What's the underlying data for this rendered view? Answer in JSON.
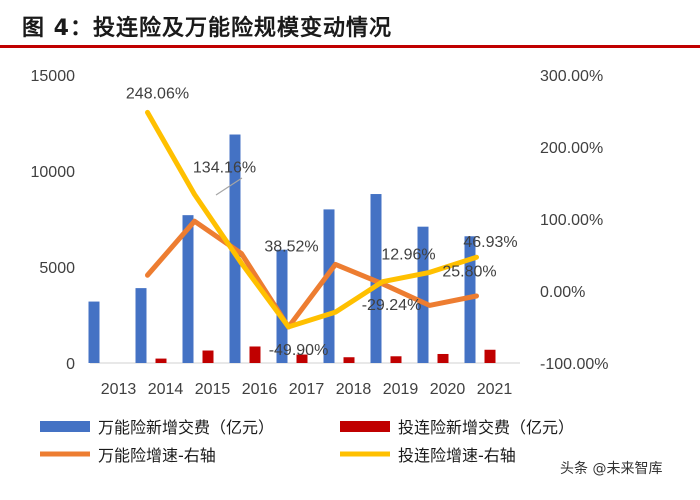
{
  "header": {
    "title": "图 4：投连险及万能险规模变动情况"
  },
  "watermark": {
    "text": "头条 @未来智库",
    "icon_name": "wechat-icon"
  },
  "colors": {
    "universal_bar": "#4472C4",
    "unit_linked_bar": "#C00000",
    "universal_growth": "#ED7D31",
    "unit_linked_growth": "#FFC000",
    "accent_rule": "#C00000"
  },
  "chart_data": {
    "type": "bar",
    "categories": [
      "2013",
      "2014",
      "2015",
      "2016",
      "2017",
      "2018",
      "2019",
      "2020",
      "2021"
    ],
    "left_axis": {
      "min": 0,
      "max": 15000,
      "ticks": [
        "0",
        "5000",
        "10000",
        "15000"
      ],
      "tick_values": [
        0,
        5000,
        10000,
        15000
      ]
    },
    "right_axis": {
      "min": -100,
      "max": 300,
      "ticks": [
        "-100.00%",
        "0.00%",
        "100.00%",
        "200.00%",
        "300.00%"
      ],
      "tick_values": [
        -100,
        0,
        100,
        200,
        300
      ]
    },
    "series": [
      {
        "name": "万能险新增交费（亿元）",
        "kind": "bar",
        "axis": "left",
        "values": [
          3200,
          3900,
          7700,
          11900,
          5900,
          8000,
          8800,
          7100,
          6600
        ]
      },
      {
        "name": "投连险新增交费（亿元）",
        "kind": "bar",
        "axis": "left",
        "values": [
          null,
          230,
          650,
          860,
          440,
          300,
          350,
          470,
          690
        ]
      },
      {
        "name": "万能险增速-右轴",
        "kind": "line",
        "axis": "right",
        "values": [
          null,
          22,
          97,
          52,
          -50,
          37,
          10,
          -20,
          -7
        ]
      },
      {
        "name": "投连险增速-右轴",
        "kind": "line",
        "axis": "right",
        "values": [
          null,
          248.06,
          134.16,
          38.52,
          -49.9,
          -29.24,
          12.96,
          25.8,
          46.93
        ]
      }
    ],
    "annotations": [
      {
        "text": "248.06%",
        "category": "2014"
      },
      {
        "text": "134.16%",
        "category": "2015"
      },
      {
        "text": "38.52%",
        "category": "2016"
      },
      {
        "text": "-49.90%",
        "category": "2017"
      },
      {
        "text": "-29.24%",
        "category": "2018"
      },
      {
        "text": "12.96%",
        "category": "2019"
      },
      {
        "text": "25.80%",
        "category": "2020"
      },
      {
        "text": "46.93%",
        "category": "2021"
      }
    ],
    "legend": {
      "placement": "bottom",
      "items": [
        "万能险新增交费（亿元）",
        "投连险新增交费（亿元）",
        "万能险增速-右轴",
        "投连险增速-右轴"
      ]
    }
  }
}
